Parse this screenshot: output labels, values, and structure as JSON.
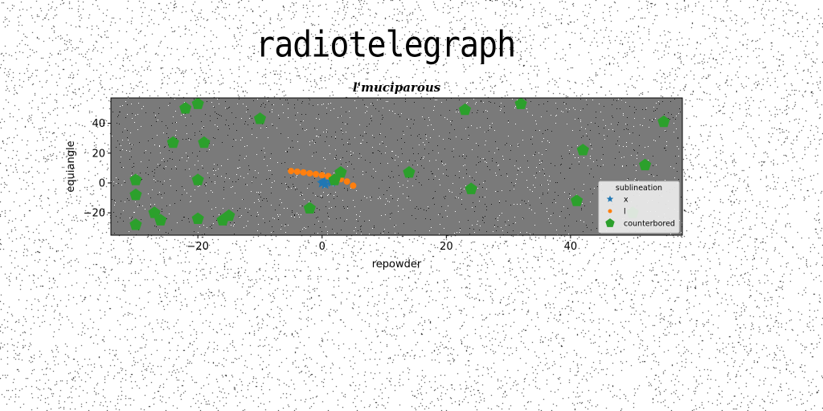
{
  "figure_title": "radiotelegraph",
  "chart_data": {
    "type": "scatter",
    "title": "l'muciparous",
    "xlabel": "repowder",
    "ylabel": "equiangle",
    "xlim": [
      -34,
      58
    ],
    "ylim": [
      -35,
      57
    ],
    "xticks": [
      -20,
      0,
      20,
      40
    ],
    "yticks": [
      -20,
      0,
      20,
      40
    ],
    "xtick_labels": [
      "−20",
      "0",
      "20",
      "40"
    ],
    "ytick_labels": [
      "−20",
      "0",
      "20",
      "40"
    ],
    "grid": false,
    "legend": {
      "title": "sublineation",
      "placement": "lower-right"
    },
    "plot_background": "#7a7a7a",
    "series": [
      {
        "name": "x",
        "marker": "star",
        "color": "#1f77b4",
        "points": [
          [
            0,
            0
          ],
          [
            0.5,
            -1
          ],
          [
            1.5,
            0.5
          ],
          [
            0.3,
            0.8
          ]
        ]
      },
      {
        "name": "l",
        "marker": "circle",
        "color": "#ff7f0e",
        "points": [
          [
            -5,
            8
          ],
          [
            -4,
            7.6
          ],
          [
            -3,
            7.1
          ],
          [
            -2,
            6.5
          ],
          [
            -1,
            5.9
          ],
          [
            0,
            5.2
          ],
          [
            1,
            4.6
          ],
          [
            2,
            3.8
          ],
          [
            3,
            2.6
          ],
          [
            4,
            1
          ],
          [
            5,
            -1.8
          ]
        ]
      },
      {
        "name": "counterbored",
        "marker": "pentagon",
        "color": "#2ca02c",
        "points": [
          [
            -22,
            50
          ],
          [
            -20,
            53
          ],
          [
            -10,
            43
          ],
          [
            23,
            49
          ],
          [
            32,
            53
          ],
          [
            55,
            41
          ],
          [
            -24,
            27
          ],
          [
            -19,
            27
          ],
          [
            42,
            22
          ],
          [
            52,
            12
          ],
          [
            -30,
            2
          ],
          [
            -20,
            2
          ],
          [
            3,
            7
          ],
          [
            2,
            2
          ],
          [
            14,
            7
          ],
          [
            24,
            -4
          ],
          [
            41,
            -12
          ],
          [
            -30,
            -8
          ],
          [
            -27,
            -20
          ],
          [
            -26,
            -25
          ],
          [
            -20,
            -24
          ],
          [
            -15,
            -22
          ],
          [
            -16,
            -25
          ],
          [
            -2,
            -17
          ],
          [
            -30,
            -28
          ],
          [
            50,
            -20
          ]
        ]
      }
    ]
  }
}
